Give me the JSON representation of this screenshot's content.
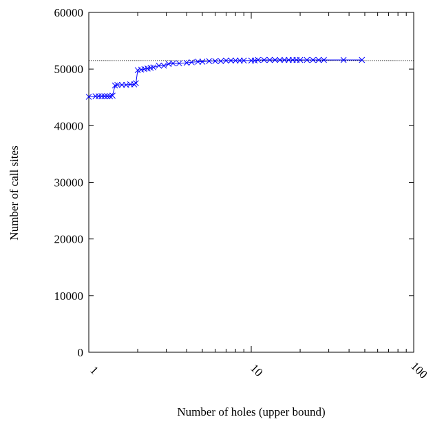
{
  "chart_data": {
    "type": "line",
    "log_x": true,
    "xlabel": "Number of holes (upper bound)",
    "ylabel": "Number of call sites",
    "xlim": [
      1,
      100
    ],
    "xticks": [
      1,
      10,
      100
    ],
    "xminorticks": [
      2,
      3,
      4,
      5,
      6,
      7,
      8,
      9,
      20,
      30,
      40,
      50,
      60,
      70,
      80,
      90
    ],
    "ylim": [
      0,
      60000
    ],
    "yticks": [
      0,
      10000,
      20000,
      30000,
      40000,
      50000,
      60000
    ],
    "reference_line": 51500,
    "series": [
      {
        "color": "#0000ff",
        "x": [
          1.0,
          1.1,
          1.15,
          1.2,
          1.25,
          1.3,
          1.35,
          1.4,
          1.45,
          1.5,
          1.6,
          1.7,
          1.8,
          1.9,
          1.95,
          2.0,
          2.1,
          2.2,
          2.3,
          2.4,
          2.5,
          2.7,
          2.9,
          3.1,
          3.3,
          3.6,
          4.0,
          4.3,
          4.7,
          5.0,
          5.5,
          6.0,
          6.5,
          7.0,
          7.5,
          8.0,
          8.5,
          9.0,
          10,
          10.5,
          11,
          12,
          13,
          14,
          15,
          16,
          17,
          18,
          19,
          20,
          22,
          24,
          26,
          28,
          37,
          48
        ],
        "values": [
          45100,
          45200,
          45200,
          45200,
          45200,
          45200,
          45200,
          45300,
          47100,
          47200,
          47200,
          47200,
          47300,
          47300,
          47500,
          49800,
          49900,
          50000,
          50100,
          50200,
          50300,
          50600,
          50600,
          50900,
          51000,
          51000,
          51100,
          51200,
          51300,
          51300,
          51400,
          51400,
          51400,
          51500,
          51500,
          51500,
          51500,
          51500,
          51500,
          51500,
          51600,
          51600,
          51600,
          51600,
          51600,
          51600,
          51600,
          51600,
          51600,
          51600,
          51600,
          51600,
          51600,
          51600,
          51600,
          51600
        ]
      }
    ]
  }
}
